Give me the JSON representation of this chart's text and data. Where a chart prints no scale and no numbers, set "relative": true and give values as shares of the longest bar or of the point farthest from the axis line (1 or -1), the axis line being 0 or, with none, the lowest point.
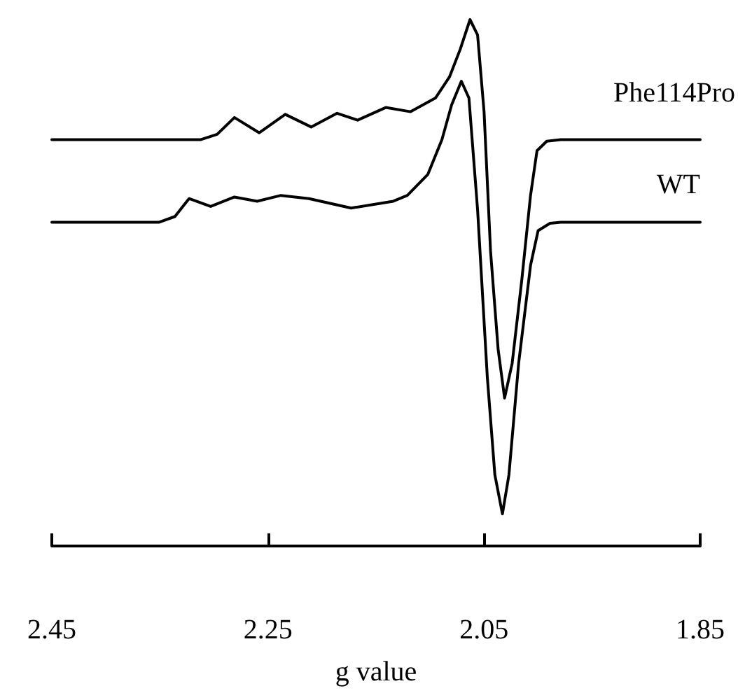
{
  "chart_data": {
    "type": "line",
    "xlabel": "g value",
    "relative": true,
    "marker": "none",
    "line_style": "solid",
    "grid": false,
    "legend": false,
    "xlim": [
      2.45,
      1.85
    ],
    "xticks": [
      2.45,
      2.25,
      2.05,
      1.85
    ],
    "series": [
      {
        "name": "Phe114Pro",
        "color": "#000000",
        "x": [
          2.45,
          2.312,
          2.297,
          2.281,
          2.258,
          2.234,
          2.21,
          2.186,
          2.167,
          2.141,
          2.118,
          2.095,
          2.082,
          2.072,
          2.063,
          2.056,
          2.05,
          2.044,
          2.037,
          2.031,
          2.024,
          2.015,
          2.007,
          2.001,
          1.992,
          1.979,
          1.85
        ],
        "values": [
          0.772,
          0.772,
          0.782,
          0.814,
          0.785,
          0.82,
          0.796,
          0.822,
          0.809,
          0.833,
          0.825,
          0.851,
          0.891,
          0.944,
          1.0,
          0.971,
          0.825,
          0.56,
          0.374,
          0.281,
          0.347,
          0.507,
          0.666,
          0.751,
          0.769,
          0.772,
          0.772
        ]
      },
      {
        "name": "WT",
        "color": "#000000",
        "x": [
          2.45,
          2.351,
          2.336,
          2.323,
          2.303,
          2.281,
          2.26,
          2.238,
          2.212,
          2.173,
          2.134,
          2.121,
          2.102,
          2.089,
          2.08,
          2.071,
          2.064,
          2.056,
          2.047,
          2.04,
          2.033,
          2.027,
          2.018,
          2.007,
          2.0,
          1.989,
          1.979,
          1.85
        ],
        "values": [
          0.615,
          0.615,
          0.626,
          0.66,
          0.645,
          0.663,
          0.655,
          0.666,
          0.66,
          0.642,
          0.655,
          0.666,
          0.706,
          0.772,
          0.838,
          0.883,
          0.851,
          0.639,
          0.321,
          0.135,
          0.061,
          0.135,
          0.347,
          0.533,
          0.599,
          0.613,
          0.615,
          0.615
        ]
      }
    ]
  }
}
